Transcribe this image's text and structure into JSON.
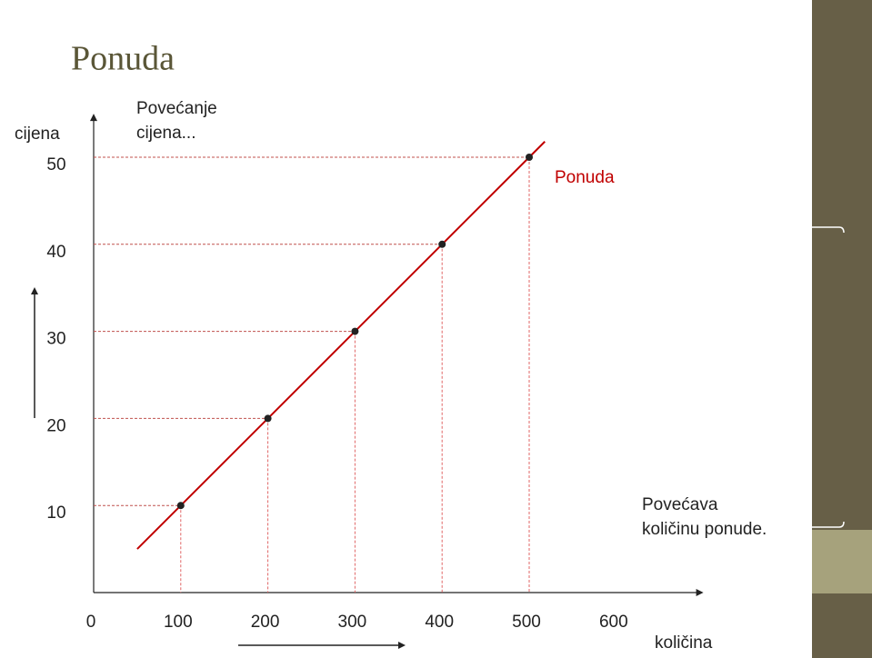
{
  "chart_data": {
    "type": "line",
    "title": "Ponuda",
    "x": [
      100,
      200,
      300,
      400,
      500
    ],
    "series": [
      {
        "name": "Ponuda",
        "color": "#c00000",
        "values": [
          10,
          20,
          30,
          40,
          50
        ]
      }
    ],
    "xlim": [
      0,
      700
    ],
    "ylim": [
      0,
      55
    ],
    "xticks": [
      0,
      100,
      200,
      300,
      400,
      500,
      600
    ],
    "yticks": [
      10,
      20,
      30,
      40,
      50
    ],
    "xlabel": "količina",
    "ylabel": "cijena",
    "annotations": [
      [
        "Povećanje",
        "cijena..."
      ],
      [
        "Povećava",
        "količinu ponude."
      ]
    ]
  }
}
